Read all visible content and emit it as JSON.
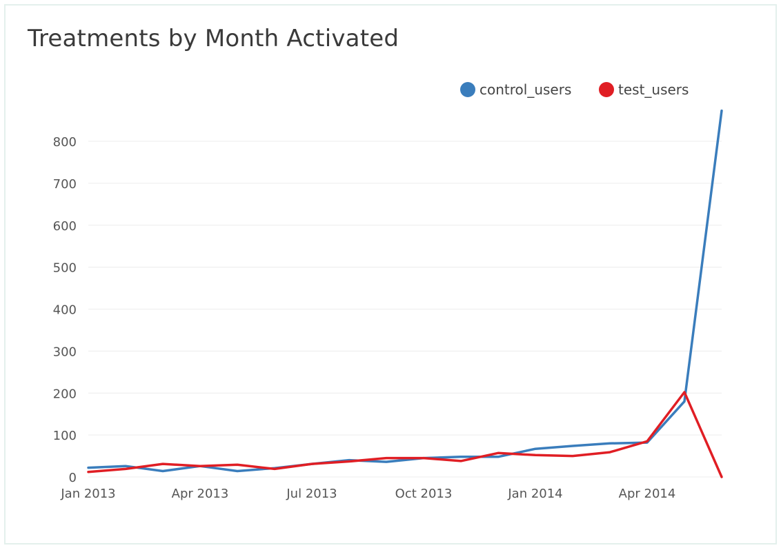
{
  "chart_data": {
    "type": "line",
    "title": "Treatments by Month Activated",
    "xlabel": "",
    "ylabel": "",
    "x": [
      "2013-01",
      "2013-02",
      "2013-03",
      "2013-04",
      "2013-05",
      "2013-06",
      "2013-07",
      "2013-08",
      "2013-09",
      "2013-10",
      "2013-11",
      "2013-12",
      "2014-01",
      "2014-02",
      "2014-03",
      "2014-04",
      "2014-05",
      "2014-06"
    ],
    "x_tick_labels": [
      {
        "x": "2013-01",
        "label": "Jan 2013"
      },
      {
        "x": "2013-04",
        "label": "Apr 2013"
      },
      {
        "x": "2013-07",
        "label": "Jul 2013"
      },
      {
        "x": "2013-10",
        "label": "Oct 2013"
      },
      {
        "x": "2014-01",
        "label": "Jan 2014"
      },
      {
        "x": "2014-04",
        "label": "Apr 2014"
      }
    ],
    "ylim": [
      0,
      800
    ],
    "y_ticks": [
      0,
      100,
      200,
      300,
      400,
      500,
      600,
      700,
      800
    ],
    "grid": true,
    "legend_position": "top-right",
    "series": [
      {
        "name": "control_users",
        "color": "#3a7dbc",
        "values": [
          22,
          26,
          14,
          26,
          14,
          21,
          31,
          40,
          36,
          45,
          48,
          48,
          67,
          74,
          80,
          82,
          180,
          873
        ]
      },
      {
        "name": "test_users",
        "color": "#e01e24",
        "values": [
          12,
          19,
          31,
          26,
          29,
          19,
          31,
          37,
          45,
          45,
          38,
          57,
          52,
          50,
          59,
          85,
          202,
          0
        ]
      }
    ]
  }
}
